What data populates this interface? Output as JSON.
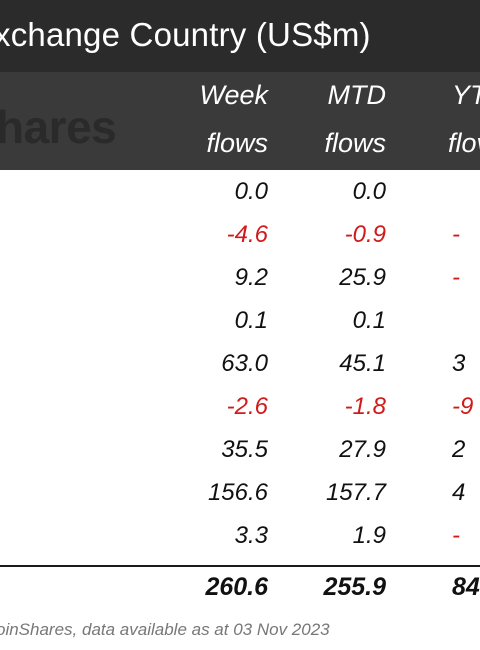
{
  "title": "xchange Country (US$m)",
  "logo_text": "hares",
  "columns": [
    {
      "line1": "Week",
      "line2": "flows"
    },
    {
      "line1": "MTD",
      "line2": "flows"
    },
    {
      "line1": "YT",
      "line2": "flov"
    }
  ],
  "rows": [
    {
      "week": "0.0",
      "mtd": "0.0",
      "ytd": ""
    },
    {
      "week": "-4.6",
      "mtd": "-0.9",
      "ytd": "-"
    },
    {
      "week": "9.2",
      "mtd": "25.9",
      "ytd": "-"
    },
    {
      "week": "0.1",
      "mtd": "0.1",
      "ytd": ""
    },
    {
      "week": "63.0",
      "mtd": "45.1",
      "ytd": "3"
    },
    {
      "week": "-2.6",
      "mtd": "-1.8",
      "ytd": "-9"
    },
    {
      "week": "35.5",
      "mtd": "27.9",
      "ytd": "2"
    },
    {
      "week": "156.6",
      "mtd": "157.7",
      "ytd": "4"
    },
    {
      "week": "3.3",
      "mtd": "1.9",
      "ytd": "-"
    }
  ],
  "total": {
    "week": "260.6",
    "mtd": "255.9",
    "ytd": "84"
  },
  "footer": "oinShares, data available as at 03 Nov 2023",
  "colors": {
    "negative": "#d11a1a",
    "header_bg": "#2b2b2b",
    "header_band": "#3a3a3a"
  }
}
